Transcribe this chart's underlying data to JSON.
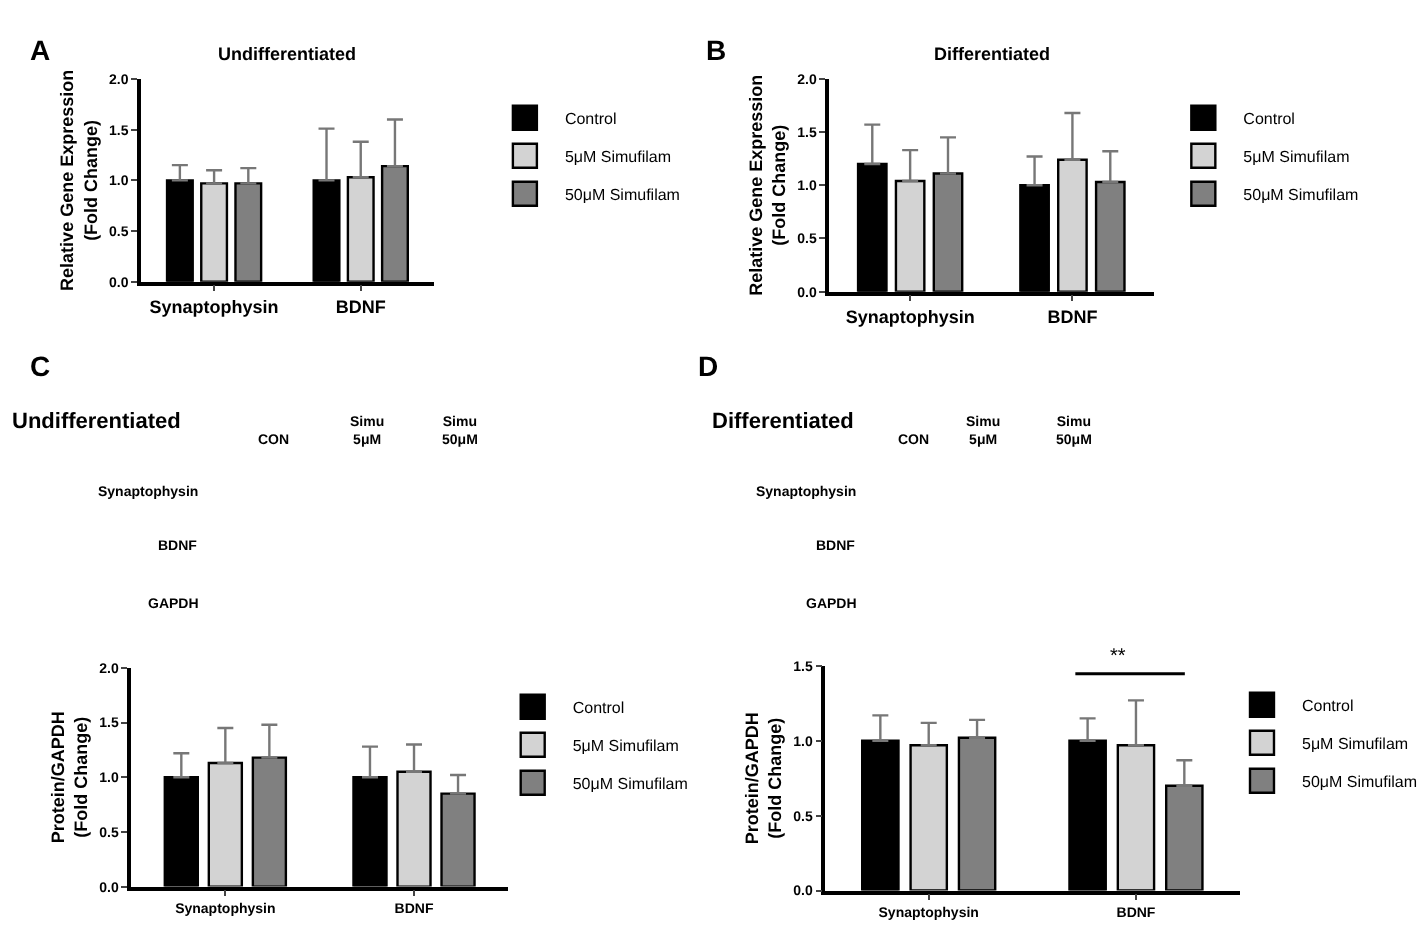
{
  "chart_data": [
    {
      "type": "bar",
      "title": "Undifferentiated",
      "ylabel": "Relative Gene Expression\n(Fold Change)",
      "categories": [
        "Synaptophysin",
        "BDNF"
      ],
      "ylim": [
        0,
        2
      ],
      "yticks": [
        {
          "value": 0,
          "label": "0.0"
        },
        {
          "value": 0.5,
          "label": "0.5"
        },
        {
          "value": 1,
          "label": "1.0"
        },
        {
          "value": 1.5,
          "label": "1.5"
        },
        {
          "value": 2,
          "label": "2.0"
        }
      ],
      "legend": "top right",
      "annotations": [
        "A"
      ],
      "series": [
        {
          "name": "Control",
          "color": "#000000",
          "values": [
            1.0,
            1.0
          ],
          "errors": [
            [
              1.0,
              1.15
            ],
            [
              1.0,
              1.51
            ]
          ]
        },
        {
          "name": "5μM Simufilam",
          "color": "#d3d3d3",
          "values": [
            0.97,
            1.03
          ],
          "errors": [
            [
              0.97,
              1.1
            ],
            [
              1.03,
              1.38
            ]
          ]
        },
        {
          "name": "50μM Simufilam",
          "color": "#808080",
          "values": [
            0.97,
            1.14
          ],
          "errors": [
            [
              0.97,
              1.12
            ],
            [
              1.14,
              1.6
            ]
          ]
        }
      ]
    },
    {
      "type": "bar",
      "title": "Differentiated",
      "ylabel": "Relative Gene Expression\n(Fold Change)",
      "categories": [
        "Synaptophysin",
        "BDNF"
      ],
      "ylim": [
        0,
        2
      ],
      "yticks": [
        {
          "value": 0,
          "label": "0.0"
        },
        {
          "value": 0.5,
          "label": "0.5"
        },
        {
          "value": 1,
          "label": "1.0"
        },
        {
          "value": 1.5,
          "label": "1.5"
        },
        {
          "value": 2,
          "label": "2.0"
        }
      ],
      "legend": "top right",
      "annotations": [
        "B"
      ],
      "series": [
        {
          "name": "Control",
          "color": "#000000",
          "values": [
            1.2,
            1.0
          ],
          "errors": [
            [
              1.2,
              1.57
            ],
            [
              1.0,
              1.27
            ]
          ]
        },
        {
          "name": "5μM Simufilam",
          "color": "#d3d3d3",
          "values": [
            1.04,
            1.24
          ],
          "errors": [
            [
              1.04,
              1.33
            ],
            [
              1.24,
              1.68
            ]
          ]
        },
        {
          "name": "50μM Simufilam",
          "color": "#808080",
          "values": [
            1.11,
            1.03
          ],
          "errors": [
            [
              1.11,
              1.45
            ],
            [
              1.03,
              1.32
            ]
          ]
        }
      ]
    },
    {
      "type": "other",
      "title": "Undifferentiated",
      "categories": [
        "CON",
        "Simu\n5μM",
        "Simu\n50μM"
      ],
      "y_categories": [
        "Synaptophysin",
        "BDNF",
        "GAPDH"
      ],
      "annotations": [
        "C"
      ]
    },
    {
      "type": "bar",
      "ylabel": "Protein/GAPDH\n(Fold Change)",
      "categories": [
        "Synaptophysin",
        "BDNF"
      ],
      "ylim": [
        0,
        2
      ],
      "yticks": [
        {
          "value": 0,
          "label": "0.0"
        },
        {
          "value": 0.5,
          "label": "0.5"
        },
        {
          "value": 1,
          "label": "1.0"
        },
        {
          "value": 1.5,
          "label": "1.5"
        },
        {
          "value": 2,
          "label": "2.0"
        }
      ],
      "legend": "top right",
      "series": [
        {
          "name": "Control",
          "color": "#000000",
          "values": [
            1.0,
            1.0
          ],
          "errors": [
            [
              1.0,
              1.22
            ],
            [
              1.0,
              1.28
            ]
          ]
        },
        {
          "name": "5μM Simufilam",
          "color": "#d3d3d3",
          "values": [
            1.13,
            1.05
          ],
          "errors": [
            [
              1.13,
              1.45
            ],
            [
              1.05,
              1.3
            ]
          ]
        },
        {
          "name": "50μM Simufilam",
          "color": "#808080",
          "values": [
            1.18,
            0.85
          ],
          "errors": [
            [
              1.18,
              1.48
            ],
            [
              0.85,
              1.02
            ]
          ]
        }
      ]
    },
    {
      "type": "other",
      "title": "Differentiated",
      "categories": [
        "CON",
        "Simu\n5μM",
        "Simu\n50μM"
      ],
      "y_categories": [
        "Synaptophysin",
        "BDNF",
        "GAPDH"
      ],
      "annotations": [
        "D"
      ]
    },
    {
      "type": "bar",
      "ylabel": "Protein/GAPDH\n(Fold Change)",
      "categories": [
        "Synaptophysin",
        "BDNF"
      ],
      "ylim": [
        0,
        1.5
      ],
      "yticks": [
        {
          "value": 0,
          "label": "0.0"
        },
        {
          "value": 0.5,
          "label": "0.5"
        },
        {
          "value": 1,
          "label": "1.0"
        },
        {
          "value": 1.5,
          "label": "1.5"
        }
      ],
      "legend": "top right",
      "annotations": [
        "**"
      ],
      "series": [
        {
          "name": "Control",
          "color": "#000000",
          "values": [
            1.0,
            1.0
          ],
          "errors": [
            [
              1.0,
              1.17
            ],
            [
              1.0,
              1.15
            ]
          ]
        },
        {
          "name": "5μM Simufilam",
          "color": "#d3d3d3",
          "values": [
            0.97,
            0.97
          ],
          "errors": [
            [
              0.97,
              1.12
            ],
            [
              0.97,
              1.27
            ]
          ]
        },
        {
          "name": "50μM Simufilam",
          "color": "#808080",
          "values": [
            1.02,
            0.7
          ],
          "errors": [
            [
              1.02,
              1.14
            ],
            [
              0.7,
              0.87
            ]
          ]
        }
      ]
    }
  ]
}
